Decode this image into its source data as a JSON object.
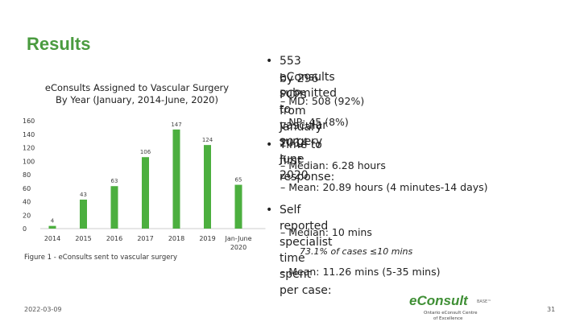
{
  "slide": {
    "title": "Results",
    "date": "2022-03-09",
    "page_number": "31",
    "caption": "Figure 1 - eConsults sent to vascular surgery"
  },
  "chart_data": {
    "type": "bar",
    "title_line1": "eConsults Assigned to Vascular Surgery",
    "title_line2": "By Year (January, 2014-June, 2020)",
    "categories": [
      "2014",
      "2015",
      "2016",
      "2017",
      "2018",
      "2019",
      "Jan-June 2020"
    ],
    "values": [
      4,
      43,
      63,
      106,
      147,
      124,
      65
    ],
    "data_labels": [
      "4",
      "43",
      "63",
      "106",
      "147",
      "124",
      "65"
    ],
    "ylim": [
      0,
      160
    ],
    "yticks": [
      "0",
      "20",
      "40",
      "60",
      "80",
      "100",
      "120",
      "140",
      "160"
    ],
    "bar_color": "#4caf3f",
    "grid": false,
    "legend": "none"
  },
  "bullets": {
    "b1_line1": "553 eConsults submitted to vascular surgery",
    "b1_line2": "by 296 PCPs from January 2014 – June 2020",
    "b1_sub1": "MD: 508 (92%)",
    "b1_sub2": "NP: 45 (8%)",
    "b2": "Time to first response:",
    "b2_sub1": "Median: 6.28 hours",
    "b2_sub2": "Mean: 20.89 hours (4 minutes-14 days)",
    "b3": "Self reported specialist time spent per case:",
    "b3_sub1": "Median: 10 mins",
    "b3_sub1_note": "73.1% of cases ≤10 mins",
    "b3_sub2": "Mean: 11.26 mins (5-35 mins)"
  },
  "logo": {
    "name": "eConsult",
    "tag": "BASE™",
    "sub1": "Ontario eConsult Centre",
    "sub2": "of Excellence",
    "color": "#3f8f35"
  }
}
